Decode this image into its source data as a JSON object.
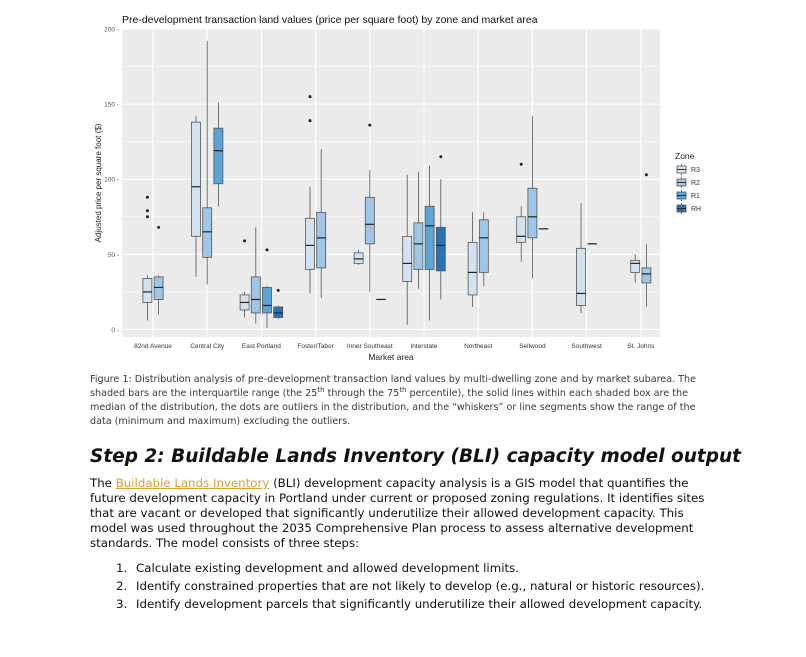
{
  "chart_data": {
    "type": "box",
    "title": "Pre-development transaction land values (price per square foot) by zone and market area",
    "xlabel": "Market area",
    "ylabel": "Adjusted price per square foot ($)",
    "ylim": [
      -5,
      200
    ],
    "yticks": [
      0,
      50,
      100,
      150,
      200
    ],
    "grid": true,
    "legend_title": "Zone",
    "legend_position": "right",
    "zones": [
      "R3",
      "R2",
      "R1",
      "RH"
    ],
    "zone_colors": {
      "R3": "#d4e2f0",
      "R2": "#9fc6e6",
      "R1": "#5da4d6",
      "RH": "#2a72b4"
    },
    "categories": [
      "82nd Avenue",
      "Central City",
      "East Portland",
      "Foster/Tabor",
      "Inner Southeast",
      "Interstate",
      "Northeast",
      "Sellwood",
      "Southwest",
      "St. Johns"
    ],
    "boxes": [
      {
        "category": "82nd Avenue",
        "zone": "R3",
        "min": 6,
        "q1": 18,
        "median": 25,
        "q3": 34,
        "max": 36,
        "outliers": [
          75,
          79,
          88
        ]
      },
      {
        "category": "82nd Avenue",
        "zone": "R2",
        "min": 10,
        "q1": 20,
        "median": 28,
        "q3": 35,
        "max": 36,
        "outliers": [
          68
        ]
      },
      {
        "category": "Central City",
        "zone": "R3",
        "min": 35,
        "q1": 62,
        "median": 95,
        "q3": 138,
        "max": 142,
        "outliers": []
      },
      {
        "category": "Central City",
        "zone": "R2",
        "min": 30,
        "q1": 48,
        "median": 65,
        "q3": 81,
        "max": 192,
        "outliers": []
      },
      {
        "category": "Central City",
        "zone": "R1",
        "min": 82,
        "q1": 97,
        "median": 119,
        "q3": 134,
        "max": 151,
        "outliers": []
      },
      {
        "category": "East Portland",
        "zone": "R3",
        "min": 8,
        "q1": 13,
        "median": 18,
        "q3": 23,
        "max": 25,
        "outliers": [
          59
        ]
      },
      {
        "category": "East Portland",
        "zone": "R2",
        "min": 4,
        "q1": 11,
        "median": 20,
        "q3": 35,
        "max": 68,
        "outliers": []
      },
      {
        "category": "East Portland",
        "zone": "R1",
        "min": 1,
        "q1": 11,
        "median": 16,
        "q3": 28,
        "max": 29,
        "outliers": [
          53
        ]
      },
      {
        "category": "East Portland",
        "zone": "RH",
        "min": 7,
        "q1": 8,
        "median": 11,
        "q3": 15,
        "max": 16,
        "outliers": [
          26
        ]
      },
      {
        "category": "Foster/Tabor",
        "zone": "R3",
        "min": 24,
        "q1": 40,
        "median": 56,
        "q3": 74,
        "max": 95,
        "outliers": [
          139,
          155
        ]
      },
      {
        "category": "Foster/Tabor",
        "zone": "R2",
        "min": 21,
        "q1": 41,
        "median": 61,
        "q3": 78,
        "max": 120,
        "outliers": []
      },
      {
        "category": "Inner Southeast",
        "zone": "R3",
        "min": 43,
        "q1": 44,
        "median": 47,
        "q3": 51,
        "max": 53,
        "outliers": []
      },
      {
        "category": "Inner Southeast",
        "zone": "R2",
        "min": 25,
        "q1": 57,
        "median": 70,
        "q3": 88,
        "max": 106,
        "outliers": [
          136
        ]
      },
      {
        "category": "Inner Southeast",
        "zone": "R1",
        "min": 20,
        "q1": 20,
        "median": 20,
        "q3": 20,
        "max": 20,
        "outliers": []
      },
      {
        "category": "Interstate",
        "zone": "R3",
        "min": 3,
        "q1": 32,
        "median": 44,
        "q3": 62,
        "max": 103,
        "outliers": []
      },
      {
        "category": "Interstate",
        "zone": "R2",
        "min": 27,
        "q1": 40,
        "median": 57,
        "q3": 71,
        "max": 105,
        "outliers": []
      },
      {
        "category": "Interstate",
        "zone": "R1",
        "min": 6,
        "q1": 40,
        "median": 69,
        "q3": 82,
        "max": 109,
        "outliers": []
      },
      {
        "category": "Interstate",
        "zone": "RH",
        "min": 20,
        "q1": 39,
        "median": 56,
        "q3": 68,
        "max": 100,
        "outliers": [
          115
        ]
      },
      {
        "category": "Northeast",
        "zone": "R3",
        "min": 15,
        "q1": 23,
        "median": 38,
        "q3": 58,
        "max": 78,
        "outliers": []
      },
      {
        "category": "Northeast",
        "zone": "R2",
        "min": 29,
        "q1": 38,
        "median": 61,
        "q3": 73,
        "max": 78,
        "outliers": []
      },
      {
        "category": "Sellwood",
        "zone": "R3",
        "min": 45,
        "q1": 58,
        "median": 62,
        "q3": 75,
        "max": 82,
        "outliers": [
          110
        ]
      },
      {
        "category": "Sellwood",
        "zone": "R2",
        "min": 34,
        "q1": 61,
        "median": 75,
        "q3": 94,
        "max": 142,
        "outliers": []
      },
      {
        "category": "Sellwood",
        "zone": "R1",
        "min": 67,
        "q1": 67,
        "median": 67,
        "q3": 67,
        "max": 67,
        "outliers": []
      },
      {
        "category": "Southwest",
        "zone": "R3",
        "min": 11,
        "q1": 16,
        "median": 24,
        "q3": 54,
        "max": 84,
        "outliers": []
      },
      {
        "category": "Southwest",
        "zone": "R2",
        "min": 57,
        "q1": 57,
        "median": 57,
        "q3": 57,
        "max": 57,
        "outliers": []
      },
      {
        "category": "St. Johns",
        "zone": "R3",
        "min": 31,
        "q1": 38,
        "median": 44,
        "q3": 46,
        "max": 50,
        "outliers": []
      },
      {
        "category": "St. Johns",
        "zone": "R2",
        "min": 15,
        "q1": 31,
        "median": 37,
        "q3": 41,
        "max": 57,
        "outliers": [
          103
        ]
      }
    ]
  },
  "caption": {
    "part1": "Figure 1: Distribution analysis of pre-development transaction land values by multi-dwelling zone and by market subarea. The shaded bars are the interquartile range (the 25",
    "sup1": "th",
    "part2": " through the 75",
    "sup2": "th",
    "part3": " percentile), the solid lines within each shaded box are the median of the distribution, the dots are outliers in the distribution, and the “whiskers” or line segments show the range of the data (minimum and maximum) excluding the outliers."
  },
  "section": {
    "heading": "Step 2: Buildable Lands Inventory (BLI) capacity model output",
    "para_link": "Buildable Lands Inventory",
    "para_before": "The ",
    "para_after": " (BLI) development capacity analysis is a GIS model that quantifies the future development capacity in Portland under current or proposed zoning regulations. It identifies sites that are vacant or developed that significantly underutilize their allowed development capacity. This model was used throughout the 2035 Comprehensive Plan process to assess alternative development standards. The model consists of three steps:",
    "steps": [
      {
        "num": "1.",
        "text": "Calculate existing development and allowed development limits."
      },
      {
        "num": "2.",
        "text": "Identify constrained properties that are not likely to develop (e.g., natural or historic resources)."
      },
      {
        "num": "3.",
        "text": "Identify development parcels that significantly underutilize their allowed development capacity."
      }
    ]
  }
}
